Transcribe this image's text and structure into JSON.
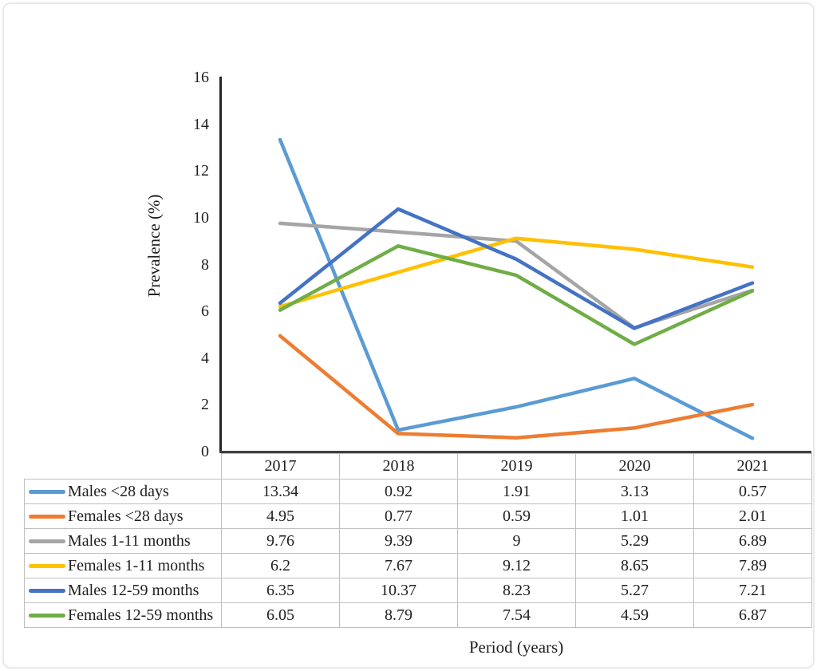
{
  "figure": {
    "frame_border_color": "#e9e9e9",
    "axis_line_color": "#262626",
    "table_border_color": "#bfbfbf",
    "text_color": "#1f1f1f"
  },
  "chart_data": {
    "type": "line",
    "title": "",
    "xlabel": "Period (years)",
    "ylabel": "Prevalence (%)",
    "categories": [
      "2017",
      "2018",
      "2019",
      "2020",
      "2021"
    ],
    "series": [
      {
        "name": "Males <28 days",
        "color": "#5B9BD5",
        "values": [
          13.34,
          0.92,
          1.91,
          3.13,
          0.57
        ]
      },
      {
        "name": "Females <28 days",
        "color": "#ED7D31",
        "values": [
          4.95,
          0.77,
          0.59,
          1.01,
          2.01
        ]
      },
      {
        "name": "Males 1-11 months",
        "color": "#A5A5A5",
        "values": [
          9.76,
          9.39,
          9,
          5.29,
          6.89
        ]
      },
      {
        "name": "Females 1-11 months",
        "color": "#FFC000",
        "values": [
          6.2,
          7.67,
          9.12,
          8.65,
          7.89
        ]
      },
      {
        "name": "Males 12-59 months",
        "color": "#4472C4",
        "values": [
          6.35,
          10.37,
          8.23,
          5.27,
          7.21
        ]
      },
      {
        "name": "Females 12-59 months",
        "color": "#70AD47",
        "values": [
          6.05,
          8.79,
          7.54,
          4.59,
          6.87
        ]
      }
    ],
    "ylim": [
      0,
      16
    ],
    "yticks": [
      0,
      2,
      4,
      6,
      8,
      10,
      12,
      14,
      16
    ],
    "grid": false,
    "legend_position": "data-table-left",
    "data_table_shown": true
  }
}
